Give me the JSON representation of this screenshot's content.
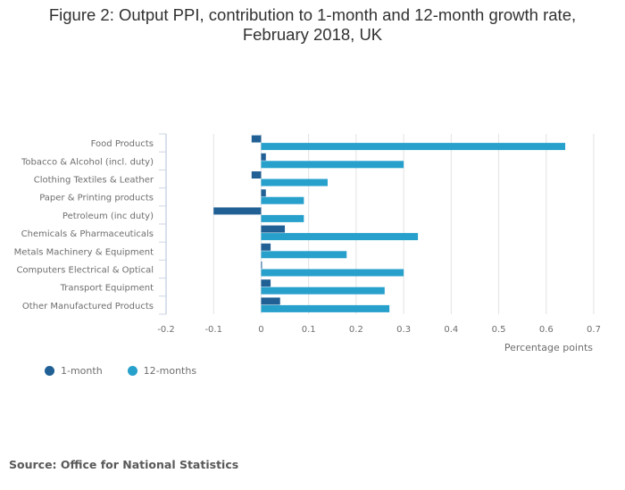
{
  "title_line1": "Figure 2: Output PPI, contribution to 1-month and 12-month growth rate,",
  "title_line2": "February 2018, UK",
  "source": "Source: Office for National Statistics",
  "chart_data": {
    "type": "bar",
    "orientation": "horizontal",
    "title": "Figure 2: Output PPI, contribution to 1-month and 12-month growth rate, February 2018, UK",
    "xlabel": "Percentage points",
    "ylabel": "",
    "xlim": [
      -0.2,
      0.7
    ],
    "xticks": [
      -0.2,
      -0.1,
      0,
      0.1,
      0.2,
      0.3,
      0.4,
      0.5,
      0.6,
      0.7
    ],
    "xtick_labels": [
      "-0.2",
      "-0.1",
      "0",
      "0.1",
      "0.2",
      "0.3",
      "0.4",
      "0.5",
      "0.6",
      "0.7"
    ],
    "grid": true,
    "legend_position": "bottom-left",
    "categories": [
      "Food Products",
      "Tobacco & Alcohol (incl. duty)",
      "Clothing Textiles & Leather",
      "Paper & Printing products",
      "Petroleum (inc duty)",
      "Chemicals & Pharmaceuticals",
      "Metals Machinery & Equipment",
      "Computers Electrical & Optical",
      "Transport Equipment",
      "Other Manufactured Products"
    ],
    "series": [
      {
        "name": "1-month",
        "color": "#206095",
        "values": [
          -0.02,
          0.01,
          -0.02,
          0.01,
          -0.1,
          0.05,
          0.02,
          0.0,
          0.02,
          0.04
        ]
      },
      {
        "name": "12-months",
        "color": "#27a0cc",
        "values": [
          0.64,
          0.3,
          0.14,
          0.09,
          0.09,
          0.33,
          0.18,
          0.3,
          0.26,
          0.27
        ]
      }
    ]
  }
}
